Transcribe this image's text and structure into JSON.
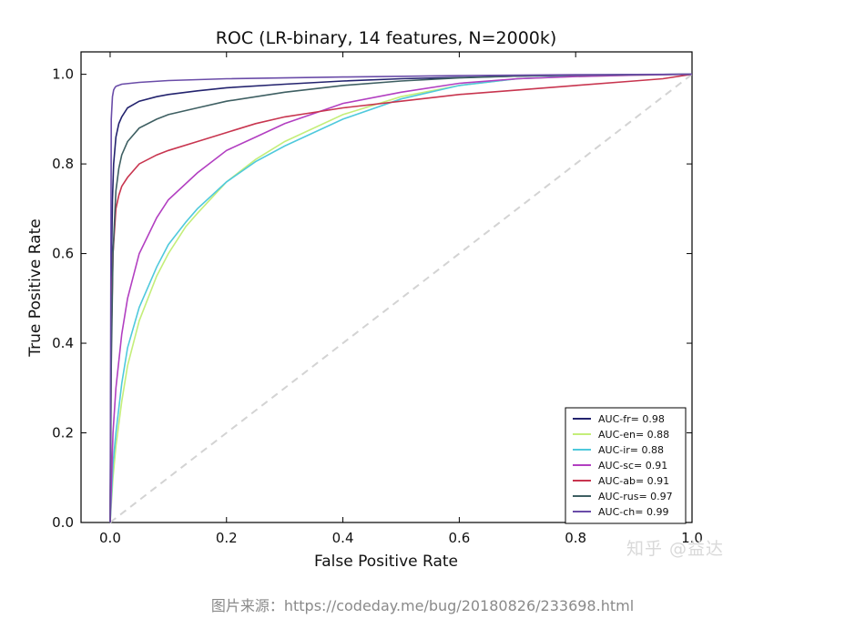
{
  "chart_data": {
    "type": "line",
    "title": "ROC (LR-binary, 14 features, N=2000k)",
    "xlabel": "False Positive Rate",
    "ylabel": "True Positive Rate",
    "xlim": [
      -0.05,
      1.0
    ],
    "ylim": [
      0.0,
      1.05
    ],
    "xticks": [
      "0.0",
      "0.2",
      "0.4",
      "0.6",
      "0.8",
      "1.0"
    ],
    "yticks": [
      "0.0",
      "0.2",
      "0.4",
      "0.6",
      "0.8",
      "1.0"
    ],
    "grid": false,
    "legend_position": "lower-right",
    "diagonal": {
      "x": [
        0,
        1
      ],
      "y": [
        0,
        1
      ],
      "color": "#d3d3d3",
      "style": "dashed"
    },
    "series": [
      {
        "name": "AUC-fr= 0.98",
        "color": "#23236e",
        "x": [
          0,
          0.002,
          0.004,
          0.006,
          0.01,
          0.015,
          0.02,
          0.03,
          0.05,
          0.08,
          0.1,
          0.15,
          0.2,
          0.3,
          0.4,
          0.5,
          0.6,
          0.7,
          0.8,
          0.9,
          1.0
        ],
        "y": [
          0,
          0.55,
          0.72,
          0.8,
          0.86,
          0.89,
          0.905,
          0.925,
          0.94,
          0.95,
          0.955,
          0.963,
          0.97,
          0.978,
          0.985,
          0.99,
          0.993,
          0.996,
          0.998,
          0.999,
          1.0
        ]
      },
      {
        "name": "AUC-en= 0.88",
        "color": "#c4ee7a",
        "x": [
          0,
          0.005,
          0.01,
          0.02,
          0.03,
          0.05,
          0.08,
          0.1,
          0.13,
          0.15,
          0.2,
          0.25,
          0.3,
          0.4,
          0.5,
          0.6,
          0.7,
          0.8,
          0.9,
          1.0
        ],
        "y": [
          0,
          0.1,
          0.17,
          0.27,
          0.35,
          0.45,
          0.55,
          0.6,
          0.66,
          0.69,
          0.76,
          0.81,
          0.85,
          0.91,
          0.95,
          0.975,
          0.99,
          0.995,
          0.998,
          1.0
        ]
      },
      {
        "name": "AUC-ir= 0.88",
        "color": "#4fc9dc",
        "x": [
          0,
          0.005,
          0.01,
          0.02,
          0.03,
          0.05,
          0.08,
          0.1,
          0.13,
          0.15,
          0.2,
          0.25,
          0.3,
          0.4,
          0.5,
          0.6,
          0.7,
          0.8,
          0.9,
          1.0
        ],
        "y": [
          0,
          0.13,
          0.2,
          0.31,
          0.39,
          0.48,
          0.57,
          0.62,
          0.67,
          0.7,
          0.76,
          0.805,
          0.84,
          0.9,
          0.945,
          0.975,
          0.99,
          0.996,
          0.999,
          1.0
        ]
      },
      {
        "name": "AUC-sc= 0.91",
        "color": "#b23fc1",
        "x": [
          0,
          0.005,
          0.01,
          0.02,
          0.03,
          0.05,
          0.08,
          0.1,
          0.15,
          0.2,
          0.25,
          0.3,
          0.4,
          0.5,
          0.6,
          0.7,
          0.8,
          0.9,
          1.0
        ],
        "y": [
          0,
          0.2,
          0.3,
          0.42,
          0.5,
          0.6,
          0.68,
          0.72,
          0.78,
          0.83,
          0.86,
          0.89,
          0.935,
          0.96,
          0.98,
          0.99,
          0.995,
          0.998,
          1.0
        ]
      },
      {
        "name": "AUC-ab= 0.91",
        "color": "#c8354f",
        "x": [
          0,
          0.002,
          0.005,
          0.01,
          0.015,
          0.02,
          0.03,
          0.05,
          0.08,
          0.1,
          0.15,
          0.2,
          0.25,
          0.3,
          0.35,
          0.4,
          0.5,
          0.6,
          0.7,
          0.8,
          0.9,
          0.95,
          1.0
        ],
        "y": [
          0,
          0.4,
          0.6,
          0.7,
          0.73,
          0.75,
          0.77,
          0.8,
          0.82,
          0.83,
          0.85,
          0.87,
          0.89,
          0.905,
          0.915,
          0.925,
          0.94,
          0.955,
          0.965,
          0.975,
          0.985,
          0.99,
          1.0
        ]
      },
      {
        "name": "AUC-rus= 0.97",
        "color": "#3e5f62",
        "x": [
          0,
          0.002,
          0.005,
          0.01,
          0.015,
          0.02,
          0.03,
          0.05,
          0.08,
          0.1,
          0.15,
          0.2,
          0.3,
          0.4,
          0.5,
          0.6,
          0.7,
          0.8,
          0.9,
          1.0
        ],
        "y": [
          0,
          0.35,
          0.6,
          0.74,
          0.79,
          0.82,
          0.85,
          0.88,
          0.9,
          0.91,
          0.925,
          0.94,
          0.96,
          0.975,
          0.985,
          0.992,
          0.996,
          0.998,
          0.999,
          1.0
        ]
      },
      {
        "name": "AUC-ch= 0.99",
        "color": "#6a4ca8",
        "x": [
          0,
          0.002,
          0.004,
          0.006,
          0.008,
          0.01,
          0.02,
          0.05,
          0.1,
          0.2,
          0.4,
          0.6,
          0.8,
          1.0
        ],
        "y": [
          0,
          0.9,
          0.95,
          0.965,
          0.97,
          0.973,
          0.978,
          0.982,
          0.986,
          0.99,
          0.994,
          0.997,
          0.999,
          1.0
        ]
      }
    ]
  },
  "watermark": "知乎 @益达",
  "caption": "图片来源：https://codeday.me/bug/20180826/233698.html"
}
